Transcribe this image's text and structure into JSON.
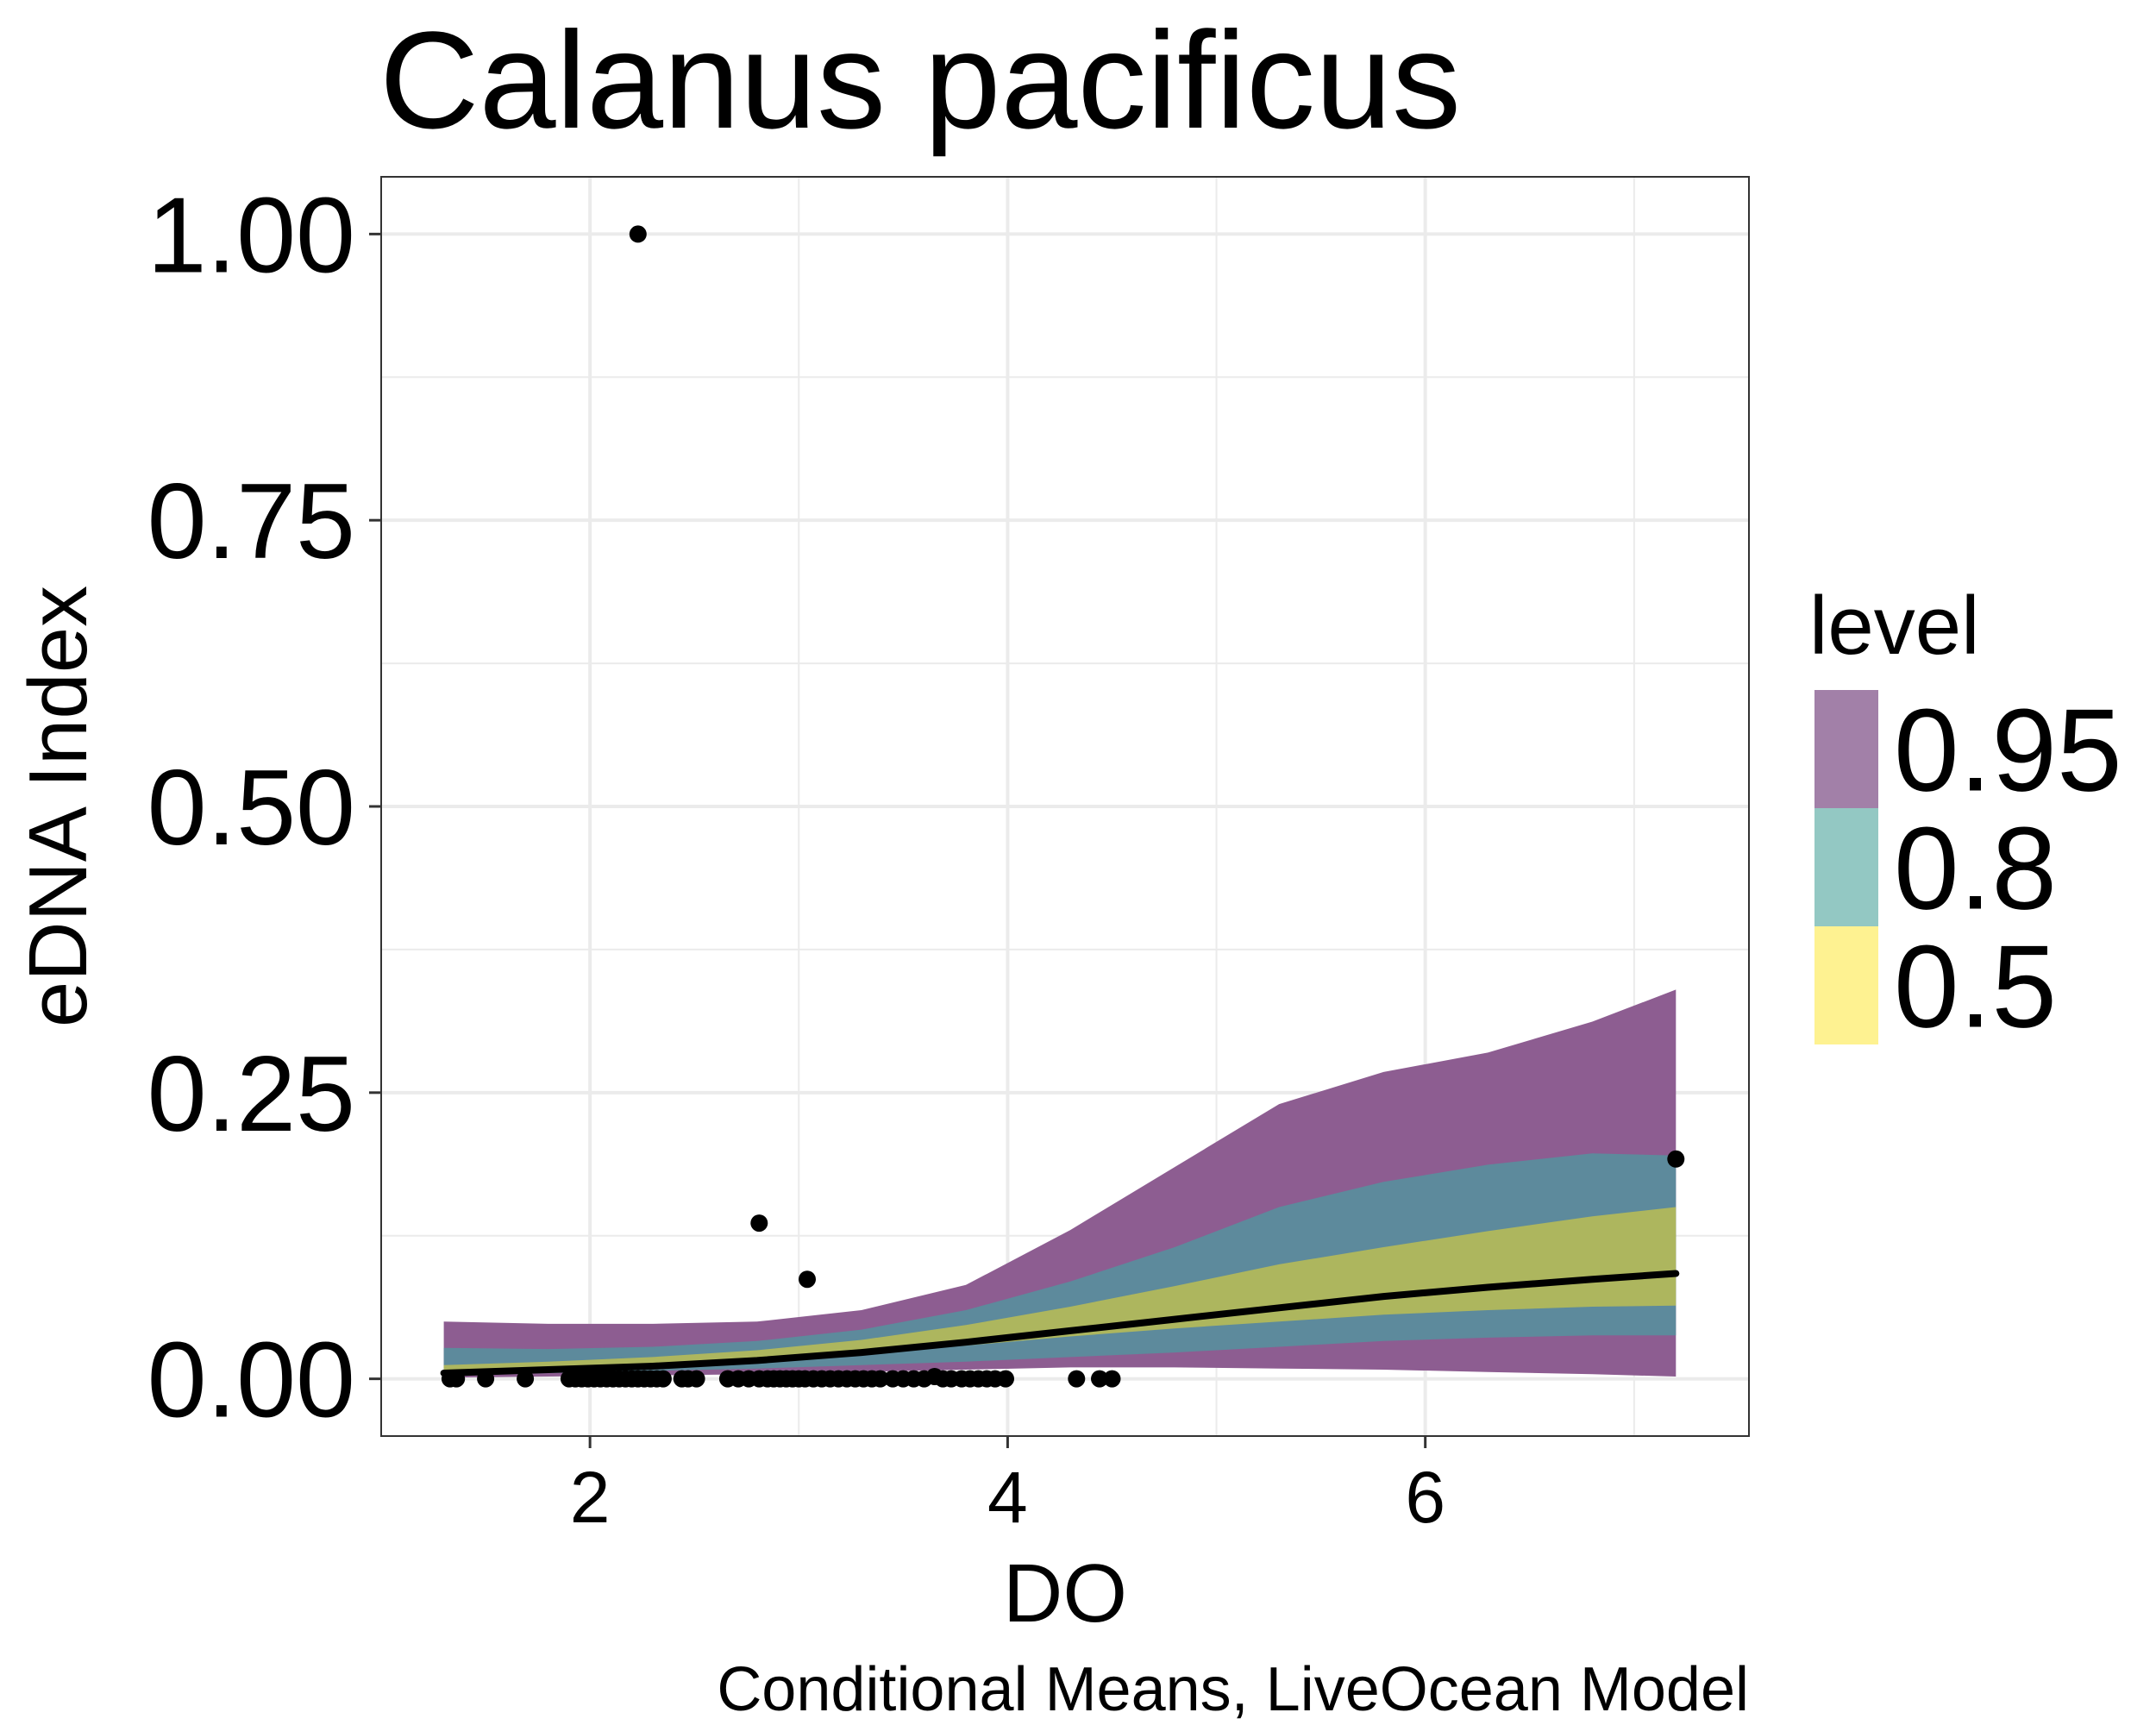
{
  "chart_data": {
    "type": "area",
    "title": "Calanus pacificus",
    "xlabel": "DO",
    "ylabel": "eDNA Index",
    "caption": "Conditional Means, LiveOcean Model",
    "xlim": [
      1.0,
      7.55
    ],
    "ylim": [
      -0.05,
      1.05
    ],
    "x_ticks": [
      2,
      4,
      6
    ],
    "x_tick_labels": [
      "2",
      "4",
      "6"
    ],
    "y_ticks": [
      0,
      0.25,
      0.5,
      0.75,
      1.0
    ],
    "y_tick_labels": [
      "0.00",
      "0.25",
      "0.50",
      "0.75",
      "1.00"
    ],
    "grid": true,
    "legend": {
      "title": "level",
      "position": "right",
      "entries": [
        {
          "label": "0.95",
          "color": "#a280a8"
        },
        {
          "label": "0.8",
          "color": "#93c8c3"
        },
        {
          "label": "0.5",
          "color": "#fef291"
        }
      ]
    },
    "x": [
      1.3,
      1.8,
      2.3,
      2.8,
      3.3,
      3.8,
      4.3,
      4.8,
      5.3,
      5.8,
      6.3,
      6.8,
      7.2
    ],
    "bands": [
      {
        "name": "0.95",
        "color": "#8d5d91",
        "lower": [
          0.001,
          0.002,
          0.003,
          0.004,
          0.006,
          0.008,
          0.01,
          0.01,
          0.009,
          0.008,
          0.006,
          0.004,
          0.002
        ],
        "upper": [
          0.05,
          0.048,
          0.048,
          0.05,
          0.06,
          0.082,
          0.13,
          0.185,
          0.24,
          0.268,
          0.285,
          0.312,
          0.34
        ]
      },
      {
        "name": "0.8",
        "color": "#5d8a9c",
        "lower": [
          0.003,
          0.005,
          0.007,
          0.009,
          0.012,
          0.015,
          0.019,
          0.023,
          0.028,
          0.033,
          0.036,
          0.038,
          0.038
        ],
        "upper": [
          0.027,
          0.026,
          0.028,
          0.033,
          0.043,
          0.06,
          0.085,
          0.115,
          0.15,
          0.172,
          0.187,
          0.197,
          0.195
        ]
      },
      {
        "name": "0.5",
        "color": "#adb65e",
        "lower": [
          0.006,
          0.009,
          0.012,
          0.016,
          0.022,
          0.029,
          0.037,
          0.044,
          0.05,
          0.056,
          0.06,
          0.063,
          0.064
        ],
        "upper": [
          0.012,
          0.015,
          0.019,
          0.025,
          0.034,
          0.047,
          0.063,
          0.081,
          0.1,
          0.115,
          0.129,
          0.142,
          0.15
        ]
      }
    ],
    "series": [
      {
        "values": [
          0.005,
          0.008,
          0.011,
          0.016,
          0.023,
          0.032,
          0.042,
          0.052,
          0.062,
          0.072,
          0.08,
          0.087,
          0.092
        ]
      }
    ],
    "points": {
      "x": [
        1.33,
        1.36,
        1.5,
        1.69,
        1.9,
        1.93,
        1.96,
        1.99,
        2.02,
        2.05,
        2.08,
        2.11,
        2.14,
        2.17,
        2.2,
        2.23,
        2.26,
        2.29,
        2.32,
        2.35,
        2.44,
        2.47,
        2.51,
        2.66,
        2.71,
        2.76,
        2.81,
        2.85,
        2.88,
        2.91,
        2.94,
        2.97,
        3.0,
        3.03,
        3.07,
        3.11,
        3.15,
        3.19,
        3.23,
        3.27,
        3.31,
        3.35,
        3.39,
        3.45,
        3.5,
        3.55,
        3.6,
        3.65,
        3.69,
        3.73,
        3.78,
        3.82,
        3.86,
        3.9,
        3.94,
        3.99,
        4.33,
        4.44,
        4.5,
        2.23,
        2.81,
        3.04,
        7.2
      ],
      "y": [
        0.0,
        0.0,
        0.0,
        0.0,
        0.0,
        0.0,
        0.0,
        0.0,
        0.0,
        0.0,
        0.0,
        0.0,
        0.0,
        0.0,
        0.0,
        0.0,
        0.0,
        0.0,
        0.0,
        0.0,
        0.0,
        0.0,
        0.0,
        0.0,
        0.0,
        0.0,
        0.0,
        0.0,
        0.0,
        0.0,
        0.0,
        0.0,
        0.0,
        0.0,
        0.0,
        0.0,
        0.0,
        0.0,
        0.0,
        0.0,
        0.0,
        0.0,
        0.0,
        0.0,
        0.0,
        0.0,
        0.0,
        0.002,
        0.0,
        0.0,
        0.0,
        0.0,
        0.0,
        0.0,
        0.0,
        0.0,
        0.0,
        0.0,
        0.0,
        1.0,
        0.136,
        0.087,
        0.192
      ]
    }
  }
}
